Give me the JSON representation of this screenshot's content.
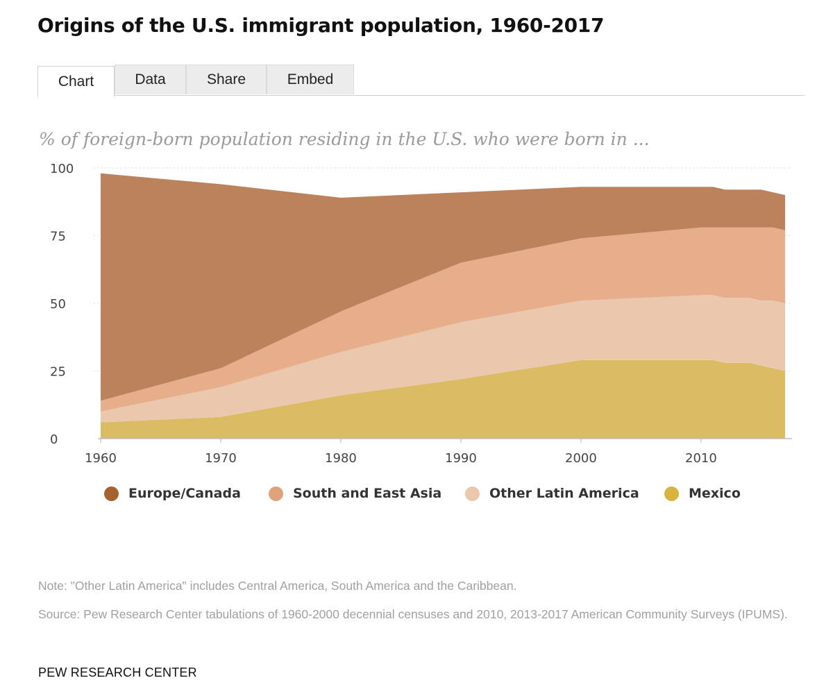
{
  "header": {
    "title": "Origins of the U.S. immigrant population, 1960-2017"
  },
  "tabs": [
    {
      "label": "Chart",
      "active": true
    },
    {
      "label": "Data",
      "active": false
    },
    {
      "label": "Share",
      "active": false
    },
    {
      "label": "Embed",
      "active": false
    }
  ],
  "chart_data": {
    "type": "area",
    "stacked": true,
    "title": "Origins of the U.S. immigrant population, 1960-2017",
    "subtitle": "% of foreign-born population residing in the U.S. who were born in ...",
    "xlabel": "",
    "ylabel": "",
    "x": [
      1960,
      1970,
      1980,
      1990,
      2000,
      2010,
      2011,
      2012,
      2013,
      2014,
      2015,
      2016,
      2017
    ],
    "xticks": [
      "1960",
      "1970",
      "1980",
      "1990",
      "2000",
      "2010"
    ],
    "yticks": [
      "0",
      "25",
      "50",
      "75",
      "100"
    ],
    "ylim": [
      0,
      100
    ],
    "grid": "horizontal dotted",
    "legend_position": "bottom",
    "series": [
      {
        "name": "Mexico",
        "color": "#dbbc62",
        "values": [
          6,
          8,
          16,
          22,
          29,
          29,
          29,
          28,
          28,
          28,
          27,
          26,
          25
        ]
      },
      {
        "name": "Other Latin America",
        "color": "#ebc8ad",
        "values": [
          4,
          11,
          16,
          21,
          22,
          24,
          24,
          24,
          24,
          24,
          24,
          25,
          25
        ]
      },
      {
        "name": "South and East Asia",
        "color": "#e6ae8b",
        "values": [
          4,
          7,
          15,
          22,
          23,
          25,
          25,
          26,
          26,
          26,
          27,
          27,
          27
        ]
      },
      {
        "name": "Europe/Canada",
        "color": "#bb825c",
        "values": [
          84,
          68,
          42,
          26,
          19,
          15,
          15,
          14,
          14,
          14,
          14,
          13,
          13
        ]
      }
    ]
  },
  "legend": [
    {
      "label": "Europe/Canada",
      "color": "#a5612e"
    },
    {
      "label": "South and East Asia",
      "color": "#e0a27a"
    },
    {
      "label": "Other Latin America",
      "color": "#ebc7ac"
    },
    {
      "label": "Mexico",
      "color": "#d8b43f"
    }
  ],
  "footer": {
    "note": "Note: \"Other Latin America\" includes Central America, South America and the Caribbean.",
    "source": "Source: Pew Research Center tabulations of 1960-2000 decennial censuses and 2010, 2013-2017 American Community Surveys (IPUMS).",
    "brand": "PEW RESEARCH CENTER"
  }
}
